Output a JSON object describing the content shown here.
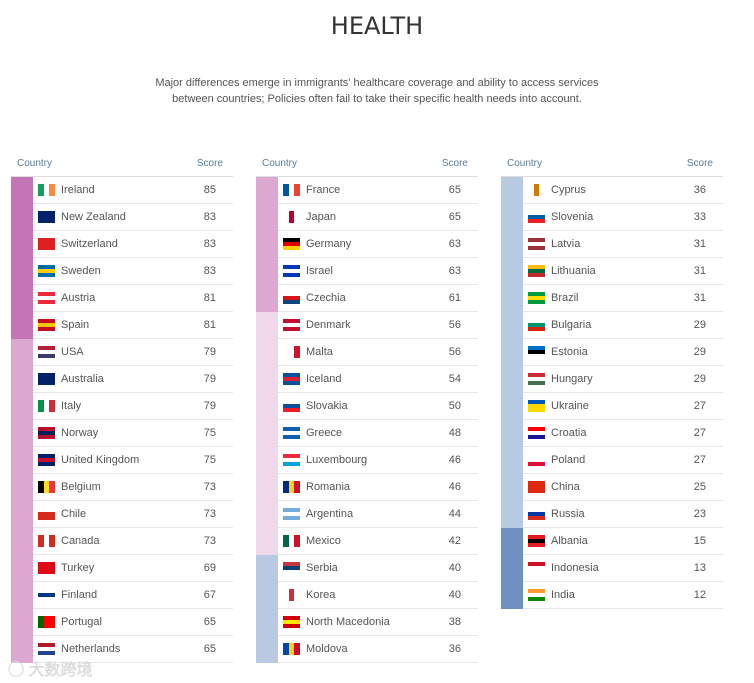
{
  "title": "HEALTH",
  "subtitle": [
    "Major differences emerge in immigrants' healthcare coverage and ability to access services",
    "between countries; Policies often fail to take their specific health needs into account."
  ],
  "headers": {
    "country": "Country",
    "score": "Score"
  },
  "tier_colors": {
    "t1": "#c574b6",
    "t2": "#dca7d1",
    "t3": "#eed8ea",
    "t4": "#b8c9e2",
    "t5": "#6e90c3"
  },
  "watermark": "大数跨境",
  "columns": [
    [
      {
        "name": "Ireland",
        "score": 85,
        "tier": "t1",
        "flag": [
          "v",
          "#169b62",
          "#fff",
          "#ff883e"
        ]
      },
      {
        "name": "New Zealand",
        "score": 83,
        "tier": "t1",
        "flag": [
          "h",
          "#012169",
          "#012169",
          "#012169"
        ]
      },
      {
        "name": "Switzerland",
        "score": 83,
        "tier": "t1",
        "flag": [
          "h",
          "#e02020",
          "#e02020",
          "#e02020"
        ]
      },
      {
        "name": "Sweden",
        "score": 83,
        "tier": "t1",
        "flag": [
          "h",
          "#006aa7",
          "#fecc00",
          "#006aa7"
        ]
      },
      {
        "name": "Austria",
        "score": 81,
        "tier": "t1",
        "flag": [
          "h",
          "#ed2939",
          "#fff",
          "#ed2939"
        ]
      },
      {
        "name": "Spain",
        "score": 81,
        "tier": "t1",
        "flag": [
          "h",
          "#c60b1e",
          "#ffc400",
          "#c60b1e"
        ]
      },
      {
        "name": "USA",
        "score": 79,
        "tier": "t2",
        "flag": [
          "h",
          "#b22234",
          "#fff",
          "#3c3b6e"
        ]
      },
      {
        "name": "Australia",
        "score": 79,
        "tier": "t2",
        "flag": [
          "h",
          "#012169",
          "#012169",
          "#012169"
        ]
      },
      {
        "name": "Italy",
        "score": 79,
        "tier": "t2",
        "flag": [
          "v",
          "#009246",
          "#fff",
          "#ce2b37"
        ]
      },
      {
        "name": "Norway",
        "score": 75,
        "tier": "t2",
        "flag": [
          "h",
          "#ba0c2f",
          "#00205b",
          "#ba0c2f"
        ]
      },
      {
        "name": "United Kingdom",
        "score": 75,
        "tier": "t2",
        "flag": [
          "h",
          "#012169",
          "#c8102e",
          "#012169"
        ]
      },
      {
        "name": "Belgium",
        "score": 73,
        "tier": "t2",
        "flag": [
          "v",
          "#000",
          "#fdda24",
          "#ef3340"
        ]
      },
      {
        "name": "Chile",
        "score": 73,
        "tier": "t2",
        "flag": [
          "h",
          "#fff",
          "#d52b1e",
          "#d52b1e"
        ]
      },
      {
        "name": "Canada",
        "score": 73,
        "tier": "t2",
        "flag": [
          "v",
          "#d52b1e",
          "#fff",
          "#d52b1e"
        ]
      },
      {
        "name": "Turkey",
        "score": 69,
        "tier": "t2",
        "flag": [
          "h",
          "#e30a17",
          "#e30a17",
          "#e30a17"
        ]
      },
      {
        "name": "Finland",
        "score": 67,
        "tier": "t2",
        "flag": [
          "h",
          "#fff",
          "#003580",
          "#fff"
        ]
      },
      {
        "name": "Portugal",
        "score": 65,
        "tier": "t2",
        "flag": [
          "v",
          "#006600",
          "#ff0000",
          "#ff0000"
        ]
      },
      {
        "name": "Netherlands",
        "score": 65,
        "tier": "t2",
        "flag": [
          "h",
          "#ae1c28",
          "#fff",
          "#21468b"
        ]
      }
    ],
    [
      {
        "name": "France",
        "score": 65,
        "tier": "t2",
        "flag": [
          "v",
          "#0055a4",
          "#fff",
          "#ef4135"
        ]
      },
      {
        "name": "Japan",
        "score": 65,
        "tier": "t2",
        "flag": [
          "v",
          "#fff",
          "#bc002d",
          "#fff"
        ]
      },
      {
        "name": "Germany",
        "score": 63,
        "tier": "t2",
        "flag": [
          "h",
          "#000",
          "#dd0000",
          "#ffce00"
        ]
      },
      {
        "name": "Israel",
        "score": 63,
        "tier": "t2",
        "flag": [
          "h",
          "#0038b8",
          "#fff",
          "#0038b8"
        ]
      },
      {
        "name": "Czechia",
        "score": 61,
        "tier": "t2",
        "flag": [
          "h",
          "#fff",
          "#d7141a",
          "#11457e"
        ]
      },
      {
        "name": "Denmark",
        "score": 56,
        "tier": "t3",
        "flag": [
          "h",
          "#c60c30",
          "#fff",
          "#c60c30"
        ]
      },
      {
        "name": "Malta",
        "score": 56,
        "tier": "t3",
        "flag": [
          "v",
          "#fff",
          "#fff",
          "#cf142b"
        ]
      },
      {
        "name": "Iceland",
        "score": 54,
        "tier": "t3",
        "flag": [
          "h",
          "#02529c",
          "#dc1e35",
          "#02529c"
        ]
      },
      {
        "name": "Slovakia",
        "score": 50,
        "tier": "t3",
        "flag": [
          "h",
          "#fff",
          "#0b4ea2",
          "#ee1c25"
        ]
      },
      {
        "name": "Greece",
        "score": 48,
        "tier": "t3",
        "flag": [
          "h",
          "#0d5eaf",
          "#fff",
          "#0d5eaf"
        ]
      },
      {
        "name": "Luxembourg",
        "score": 46,
        "tier": "t3",
        "flag": [
          "h",
          "#ed2939",
          "#fff",
          "#00a1de"
        ]
      },
      {
        "name": "Romania",
        "score": 46,
        "tier": "t3",
        "flag": [
          "v",
          "#002b7f",
          "#fcd116",
          "#ce1126"
        ]
      },
      {
        "name": "Argentina",
        "score": 44,
        "tier": "t3",
        "flag": [
          "h",
          "#74acdf",
          "#fff",
          "#74acdf"
        ]
      },
      {
        "name": "Mexico",
        "score": 42,
        "tier": "t3",
        "flag": [
          "v",
          "#006847",
          "#fff",
          "#ce1126"
        ]
      },
      {
        "name": "Serbia",
        "score": 40,
        "tier": "t4",
        "flag": [
          "h",
          "#c6363c",
          "#0c4076",
          "#fff"
        ]
      },
      {
        "name": "Korea",
        "score": 40,
        "tier": "t4",
        "flag": [
          "v",
          "#fff",
          "#cd2e3a",
          "#fff"
        ]
      },
      {
        "name": "North Macedonia",
        "score": 38,
        "tier": "t4",
        "flag": [
          "h",
          "#d20000",
          "#ffe600",
          "#d20000"
        ]
      },
      {
        "name": "Moldova",
        "score": 36,
        "tier": "t4",
        "flag": [
          "v",
          "#0046ae",
          "#ffd200",
          "#cc092f"
        ]
      }
    ],
    [
      {
        "name": "Cyprus",
        "score": 36,
        "tier": "t4",
        "flag": [
          "v",
          "#fff",
          "#d57800",
          "#fff"
        ]
      },
      {
        "name": "Slovenia",
        "score": 33,
        "tier": "t4",
        "flag": [
          "h",
          "#fff",
          "#005da4",
          "#ed1c24"
        ]
      },
      {
        "name": "Latvia",
        "score": 31,
        "tier": "t4",
        "flag": [
          "h",
          "#9e3039",
          "#fff",
          "#9e3039"
        ]
      },
      {
        "name": "Lithuania",
        "score": 31,
        "tier": "t4",
        "flag": [
          "h",
          "#fdb913",
          "#006a44",
          "#c1272d"
        ]
      },
      {
        "name": "Brazil",
        "score": 31,
        "tier": "t4",
        "flag": [
          "h",
          "#009c3b",
          "#ffdf00",
          "#009c3b"
        ]
      },
      {
        "name": "Bulgaria",
        "score": 29,
        "tier": "t4",
        "flag": [
          "h",
          "#fff",
          "#00966e",
          "#d62612"
        ]
      },
      {
        "name": "Estonia",
        "score": 29,
        "tier": "t4",
        "flag": [
          "h",
          "#0072ce",
          "#000",
          "#fff"
        ]
      },
      {
        "name": "Hungary",
        "score": 29,
        "tier": "t4",
        "flag": [
          "h",
          "#ce2939",
          "#fff",
          "#477050"
        ]
      },
      {
        "name": "Ukraine",
        "score": 27,
        "tier": "t4",
        "flag": [
          "h",
          "#0057b7",
          "#ffd700",
          "#ffd700"
        ]
      },
      {
        "name": "Croatia",
        "score": 27,
        "tier": "t4",
        "flag": [
          "h",
          "#ff0000",
          "#fff",
          "#171796"
        ]
      },
      {
        "name": "Poland",
        "score": 27,
        "tier": "t4",
        "flag": [
          "h",
          "#fff",
          "#fff",
          "#dc143c"
        ]
      },
      {
        "name": "China",
        "score": 25,
        "tier": "t4",
        "flag": [
          "h",
          "#de2910",
          "#de2910",
          "#de2910"
        ]
      },
      {
        "name": "Russia",
        "score": 23,
        "tier": "t4",
        "flag": [
          "h",
          "#fff",
          "#0039a6",
          "#d52b1e"
        ]
      },
      {
        "name": "Albania",
        "score": 15,
        "tier": "t5",
        "flag": [
          "h",
          "#e41e20",
          "#000",
          "#e41e20"
        ]
      },
      {
        "name": "Indonesia",
        "score": 13,
        "tier": "t5",
        "flag": [
          "h",
          "#ce1126",
          "#fff",
          "#fff"
        ]
      },
      {
        "name": "India",
        "score": 12,
        "tier": "t5",
        "flag": [
          "h",
          "#ff9933",
          "#fff",
          "#138808"
        ]
      }
    ]
  ]
}
